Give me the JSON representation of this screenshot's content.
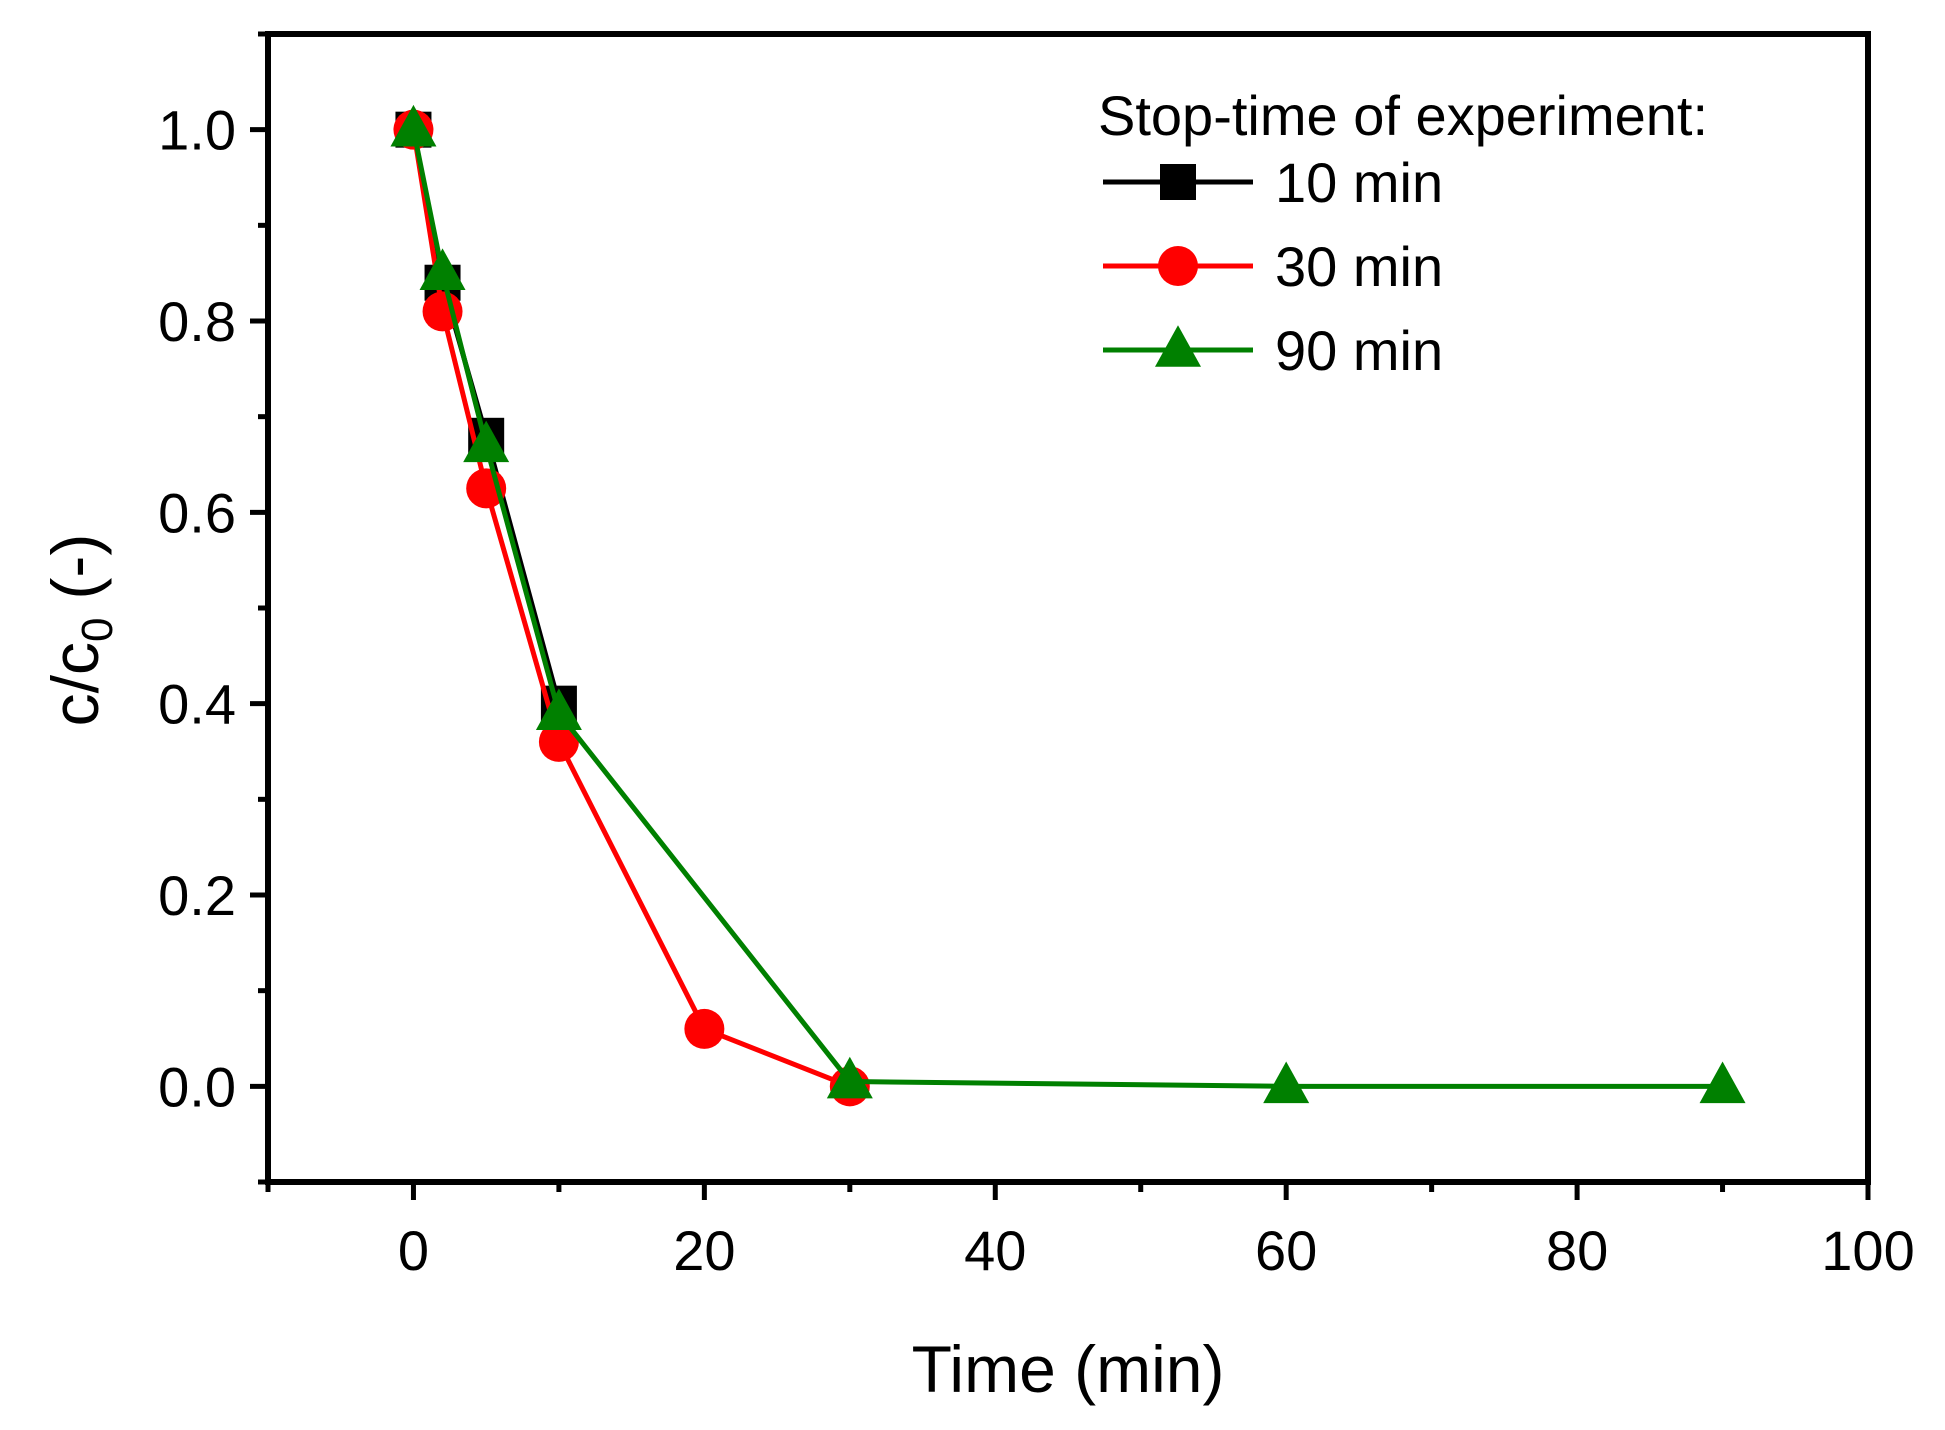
{
  "chart_data": {
    "type": "line",
    "title": "",
    "xlabel": "Time (min)",
    "ylabel_main": "c/c",
    "ylabel_sub": "0",
    "ylabel_suffix": "(-)",
    "xlim": [
      -10,
      100
    ],
    "ylim": [
      -0.1,
      1.1
    ],
    "grid": false,
    "x_ticks": [
      0,
      20,
      40,
      60,
      80,
      100
    ],
    "x_tick_labels": [
      "0",
      "20",
      "40",
      "60",
      "80",
      "100"
    ],
    "x_minor_ticks": [
      -10,
      10,
      30,
      50,
      70,
      90
    ],
    "y_ticks": [
      0.0,
      0.2,
      0.4,
      0.6,
      0.8,
      1.0
    ],
    "y_tick_labels": [
      "0.0",
      "0.2",
      "0.4",
      "0.6",
      "0.8",
      "1.0"
    ],
    "y_minor_ticks": [
      -0.1,
      0.1,
      0.3,
      0.5,
      0.7,
      0.9,
      1.1
    ],
    "legend": {
      "title": "Stop-time of experiment:",
      "position": "top-right"
    },
    "series": [
      {
        "name": "10 min",
        "color": "#000000",
        "marker": "square",
        "x": [
          0,
          2,
          5,
          10
        ],
        "y": [
          1.0,
          0.84,
          0.68,
          0.4
        ]
      },
      {
        "name": "30 min",
        "color": "#ff0000",
        "marker": "circle",
        "x": [
          0,
          2,
          5,
          10,
          20,
          30
        ],
        "y": [
          1.0,
          0.81,
          0.625,
          0.36,
          0.06,
          0.0
        ]
      },
      {
        "name": "90 min",
        "color": "#008000",
        "marker": "triangle",
        "x": [
          0,
          2,
          5,
          10,
          30,
          60,
          90
        ],
        "y": [
          1.0,
          0.85,
          0.67,
          0.39,
          0.005,
          0.0,
          0.0
        ]
      }
    ]
  }
}
